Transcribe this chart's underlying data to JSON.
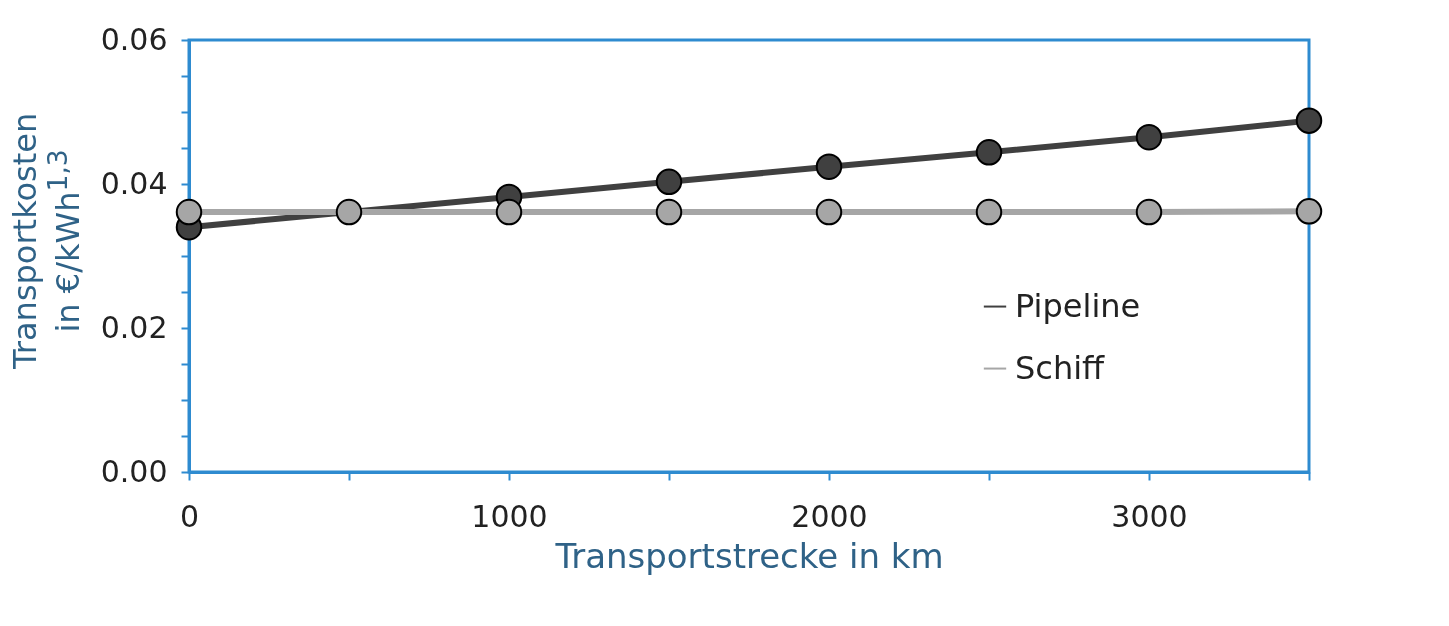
{
  "chart_data": {
    "type": "line",
    "xlabel": "Transportstrecke in km",
    "ylabel": "Transportkosten\nin €/kWh$^{1,3}$",
    "xlim": [
      0,
      3500
    ],
    "xticks": [
      0,
      {
        "value": 500,
        "label": null
      },
      1000,
      {
        "value": 1500,
        "label": null
      },
      2000,
      {
        "value": 2500,
        "label": null
      },
      3000,
      {
        "value": 3500,
        "label": null
      }
    ],
    "ylim": [
      0,
      0.06
    ],
    "yticks": [
      {
        "value": 0,
        "label": "0.00"
      },
      {
        "value": 0.005,
        "label": null
      },
      {
        "value": 0.01,
        "label": null
      },
      {
        "value": 0.015,
        "label": null
      },
      {
        "value": 0.02,
        "label": "0.02"
      },
      {
        "value": 0.025,
        "label": null
      },
      {
        "value": 0.03,
        "label": null
      },
      {
        "value": 0.035,
        "label": null
      },
      {
        "value": 0.04,
        "label": "0.04"
      },
      {
        "value": 0.045,
        "label": null
      },
      {
        "value": 0.05,
        "label": null
      },
      {
        "value": 0.055,
        "label": null
      },
      {
        "value": 0.06,
        "label": "0.06"
      }
    ],
    "series": [
      {
        "name": "Pipeline",
        "color": "#404040",
        "x": [
          0,
          1000,
          1500,
          2000,
          2500,
          3000,
          3500
        ],
        "values": [
          0.034,
          0.0382,
          0.0403,
          0.0424,
          0.0444,
          0.0465,
          0.0488
        ]
      },
      {
        "name": "Schiff",
        "color": "#a6a6a6",
        "x": [
          0,
          500,
          1000,
          1500,
          2000,
          2500,
          3000,
          3500
        ],
        "values": [
          0.0361,
          0.0361,
          0.0361,
          0.0361,
          0.0361,
          0.0361,
          0.0361,
          0.0362
        ]
      }
    ],
    "marker": "circle",
    "line_style": "solid",
    "grid": false,
    "legend": "right"
  }
}
